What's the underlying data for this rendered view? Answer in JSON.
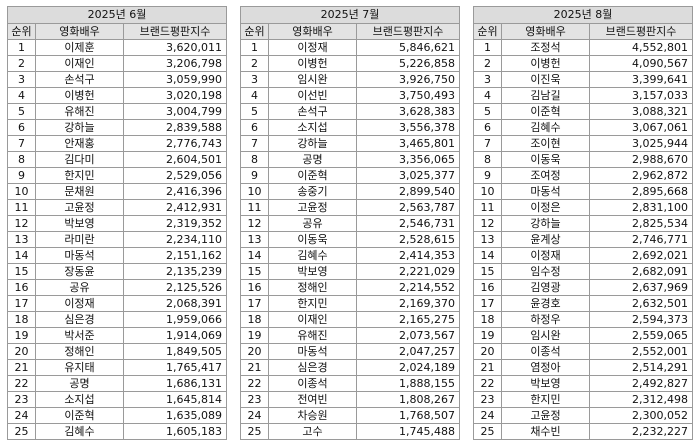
{
  "columns": {
    "rank": "순위",
    "name": "영화배우",
    "score": "브랜드평판지수"
  },
  "panels": [
    {
      "month": "2025년 6월",
      "rows": [
        {
          "rank": "1",
          "name": "이제훈",
          "score": "3,620,011"
        },
        {
          "rank": "2",
          "name": "이재인",
          "score": "3,206,798"
        },
        {
          "rank": "3",
          "name": "손석구",
          "score": "3,059,990"
        },
        {
          "rank": "4",
          "name": "이병헌",
          "score": "3,020,198"
        },
        {
          "rank": "5",
          "name": "유해진",
          "score": "3,004,799"
        },
        {
          "rank": "6",
          "name": "강하늘",
          "score": "2,839,588"
        },
        {
          "rank": "7",
          "name": "안재홍",
          "score": "2,776,743"
        },
        {
          "rank": "8",
          "name": "김다미",
          "score": "2,604,501"
        },
        {
          "rank": "9",
          "name": "한지민",
          "score": "2,529,056"
        },
        {
          "rank": "10",
          "name": "문채원",
          "score": "2,416,396"
        },
        {
          "rank": "11",
          "name": "고윤정",
          "score": "2,412,931"
        },
        {
          "rank": "12",
          "name": "박보영",
          "score": "2,319,352"
        },
        {
          "rank": "13",
          "name": "라미란",
          "score": "2,234,110"
        },
        {
          "rank": "14",
          "name": "마동석",
          "score": "2,151,162"
        },
        {
          "rank": "15",
          "name": "장동윤",
          "score": "2,135,239"
        },
        {
          "rank": "16",
          "name": "공유",
          "score": "2,125,526"
        },
        {
          "rank": "17",
          "name": "이정재",
          "score": "2,068,391"
        },
        {
          "rank": "18",
          "name": "심은경",
          "score": "1,959,066"
        },
        {
          "rank": "19",
          "name": "박서준",
          "score": "1,914,069"
        },
        {
          "rank": "20",
          "name": "정해인",
          "score": "1,849,505"
        },
        {
          "rank": "21",
          "name": "유지태",
          "score": "1,765,417"
        },
        {
          "rank": "22",
          "name": "공명",
          "score": "1,686,131"
        },
        {
          "rank": "23",
          "name": "소지섭",
          "score": "1,645,814"
        },
        {
          "rank": "24",
          "name": "이준혁",
          "score": "1,635,089"
        },
        {
          "rank": "25",
          "name": "김혜수",
          "score": "1,605,183"
        }
      ]
    },
    {
      "month": "2025년 7월",
      "rows": [
        {
          "rank": "1",
          "name": "이정재",
          "score": "5,846,621"
        },
        {
          "rank": "2",
          "name": "이병헌",
          "score": "5,226,858"
        },
        {
          "rank": "3",
          "name": "임시완",
          "score": "3,926,750"
        },
        {
          "rank": "4",
          "name": "이선빈",
          "score": "3,750,493"
        },
        {
          "rank": "5",
          "name": "손석구",
          "score": "3,628,383"
        },
        {
          "rank": "6",
          "name": "소지섭",
          "score": "3,556,378"
        },
        {
          "rank": "7",
          "name": "강하늘",
          "score": "3,465,801"
        },
        {
          "rank": "8",
          "name": "공명",
          "score": "3,356,065"
        },
        {
          "rank": "9",
          "name": "이준혁",
          "score": "3,025,377"
        },
        {
          "rank": "10",
          "name": "송중기",
          "score": "2,899,540"
        },
        {
          "rank": "11",
          "name": "고윤정",
          "score": "2,563,787"
        },
        {
          "rank": "12",
          "name": "공유",
          "score": "2,546,731"
        },
        {
          "rank": "13",
          "name": "이동욱",
          "score": "2,528,615"
        },
        {
          "rank": "14",
          "name": "김혜수",
          "score": "2,414,353"
        },
        {
          "rank": "15",
          "name": "박보영",
          "score": "2,221,029"
        },
        {
          "rank": "16",
          "name": "정해인",
          "score": "2,214,552"
        },
        {
          "rank": "17",
          "name": "한지민",
          "score": "2,169,370"
        },
        {
          "rank": "18",
          "name": "이재인",
          "score": "2,165,275"
        },
        {
          "rank": "19",
          "name": "유해진",
          "score": "2,073,567"
        },
        {
          "rank": "20",
          "name": "마동석",
          "score": "2,047,257"
        },
        {
          "rank": "21",
          "name": "심은경",
          "score": "2,024,189"
        },
        {
          "rank": "22",
          "name": "이종석",
          "score": "1,888,155"
        },
        {
          "rank": "23",
          "name": "전여빈",
          "score": "1,808,267"
        },
        {
          "rank": "24",
          "name": "차승원",
          "score": "1,768,507"
        },
        {
          "rank": "25",
          "name": "고수",
          "score": "1,745,488"
        }
      ]
    },
    {
      "month": "2025년 8월",
      "rows": [
        {
          "rank": "1",
          "name": "조정석",
          "score": "4,552,801"
        },
        {
          "rank": "2",
          "name": "이병헌",
          "score": "4,090,567"
        },
        {
          "rank": "3",
          "name": "이진욱",
          "score": "3,399,641"
        },
        {
          "rank": "4",
          "name": "김남길",
          "score": "3,157,033"
        },
        {
          "rank": "5",
          "name": "이준혁",
          "score": "3,088,321"
        },
        {
          "rank": "6",
          "name": "김혜수",
          "score": "3,067,061"
        },
        {
          "rank": "7",
          "name": "조이현",
          "score": "3,025,944"
        },
        {
          "rank": "8",
          "name": "이동욱",
          "score": "2,988,670"
        },
        {
          "rank": "9",
          "name": "조여정",
          "score": "2,962,872"
        },
        {
          "rank": "10",
          "name": "마동석",
          "score": "2,895,668"
        },
        {
          "rank": "11",
          "name": "이정은",
          "score": "2,831,100"
        },
        {
          "rank": "12",
          "name": "강하늘",
          "score": "2,825,534"
        },
        {
          "rank": "13",
          "name": "윤계상",
          "score": "2,746,771"
        },
        {
          "rank": "14",
          "name": "이정재",
          "score": "2,692,021"
        },
        {
          "rank": "15",
          "name": "임수정",
          "score": "2,682,091"
        },
        {
          "rank": "16",
          "name": "김영광",
          "score": "2,637,969"
        },
        {
          "rank": "17",
          "name": "윤경호",
          "score": "2,632,501"
        },
        {
          "rank": "18",
          "name": "하정우",
          "score": "2,594,373"
        },
        {
          "rank": "19",
          "name": "임시완",
          "score": "2,559,065"
        },
        {
          "rank": "20",
          "name": "이종석",
          "score": "2,552,001"
        },
        {
          "rank": "21",
          "name": "염정아",
          "score": "2,514,291"
        },
        {
          "rank": "22",
          "name": "박보영",
          "score": "2,492,827"
        },
        {
          "rank": "23",
          "name": "한지민",
          "score": "2,312,498"
        },
        {
          "rank": "24",
          "name": "고윤정",
          "score": "2,300,052"
        },
        {
          "rank": "25",
          "name": "채수빈",
          "score": "2,232,227"
        }
      ]
    }
  ]
}
